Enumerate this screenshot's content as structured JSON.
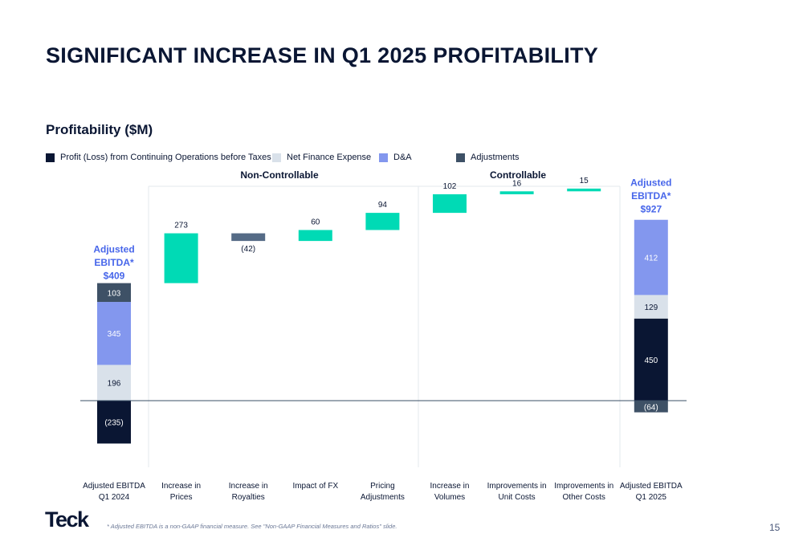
{
  "slide": {
    "title": "SIGNIFICANT INCREASE IN Q1 2025 PROFITABILITY",
    "page_number": "15",
    "footnote": "* Adjusted EBITDA is a non-GAAP financial measure. See \"Non-GAAP Financial Measures and Ratios\" slide.",
    "logo_text": "Teck"
  },
  "colors": {
    "profit": "#0a1633",
    "net_finance": "#d9e1ea",
    "da": "#8397ee",
    "adjustments": "#3e5166",
    "driver": "#00dab5",
    "royalties": "#556b86",
    "axis_line": "#3a4f66",
    "ebitda_label": "#4766ea",
    "section_divider": "#e3e8ee"
  },
  "chart_data": {
    "type": "waterfall",
    "title": "Profitability ($M)",
    "legend": [
      {
        "key": "profit",
        "label": "Profit (Loss) from Continuing Operations before Taxes"
      },
      {
        "key": "net_finance",
        "label": "Net Finance Expense"
      },
      {
        "key": "da",
        "label": "D&A"
      },
      {
        "key": "adjustments",
        "label": "Adjustments"
      }
    ],
    "sections": [
      {
        "label": "Non-Controllable",
        "categories": [
          1,
          2,
          3,
          4
        ]
      },
      {
        "label": "Controllable",
        "categories": [
          5,
          6,
          7
        ]
      }
    ],
    "categories": [
      [
        "Adjusted EBITDA",
        "Q1 2024"
      ],
      [
        "Increase in",
        "Prices"
      ],
      [
        "Increase in",
        "Royalties"
      ],
      [
        "Impact of FX",
        ""
      ],
      [
        "Pricing",
        "Adjustments"
      ],
      [
        "Increase in",
        "Volumes"
      ],
      [
        "Improvements in",
        "Unit Costs"
      ],
      [
        "Improvements in",
        "Other Costs"
      ],
      [
        "Adjusted EBITDA",
        "Q1 2025"
      ]
    ],
    "start": {
      "total_label": [
        "Adjusted",
        "EBITDA*",
        "$409"
      ],
      "components": [
        {
          "key": "profit",
          "value": -235,
          "label": "(235)"
        },
        {
          "key": "net_finance",
          "value": 196,
          "label": "196"
        },
        {
          "key": "da",
          "value": 345,
          "label": "345"
        },
        {
          "key": "adjustments",
          "value": 103,
          "label": "103"
        }
      ]
    },
    "steps": [
      {
        "value": 273,
        "label": "273"
      },
      {
        "value": -42,
        "label": "(42)"
      },
      {
        "value": 60,
        "label": "60"
      },
      {
        "value": 94,
        "label": "94"
      },
      {
        "value": 102,
        "label": "102"
      },
      {
        "value": 16,
        "label": "16"
      },
      {
        "value": 15,
        "label": "15"
      }
    ],
    "end": {
      "total_label": [
        "Adjusted",
        "EBITDA*",
        "$927"
      ],
      "components": [
        {
          "key": "adjustments",
          "value": -64,
          "label": "(64)"
        },
        {
          "key": "profit",
          "value": 450,
          "label": "450"
        },
        {
          "key": "net_finance",
          "value": 129,
          "label": "129"
        },
        {
          "key": "da",
          "value": 412,
          "label": "412"
        }
      ]
    }
  }
}
